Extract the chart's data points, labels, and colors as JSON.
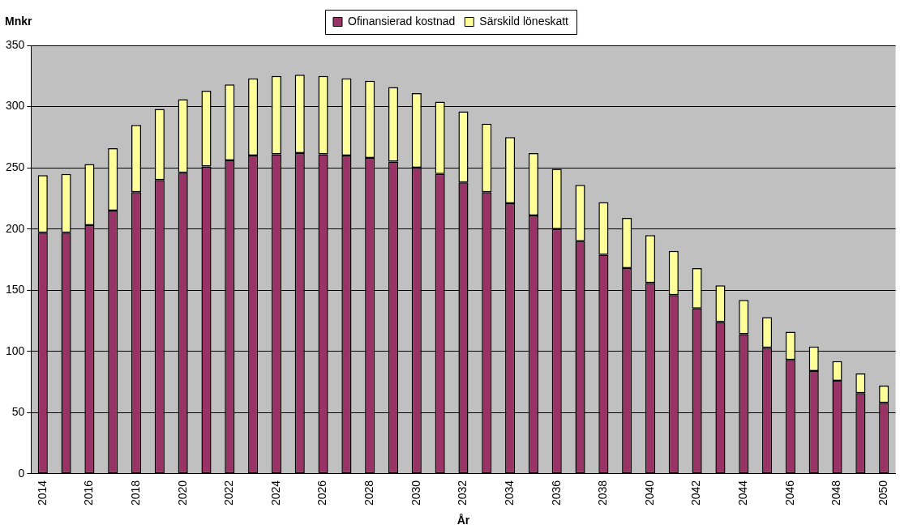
{
  "chart_data": {
    "type": "bar",
    "stacked": true,
    "ylabel": "Mnkr",
    "xlabel": "År",
    "categories": [
      "2014",
      null,
      "2016",
      null,
      "2018",
      null,
      "2020",
      null,
      "2022",
      null,
      "2024",
      null,
      "2026",
      null,
      "2028",
      null,
      "2030",
      null,
      "2032",
      null,
      "2034",
      null,
      "2036",
      null,
      "2038",
      null,
      "2040",
      null,
      "2042",
      null,
      "2044",
      null,
      "2046",
      null,
      "2048",
      null,
      "2050"
    ],
    "series": [
      {
        "name": "Ofinansierad kostnad",
        "color": "#993366",
        "values": [
          197,
          197,
          203,
          215,
          230,
          240,
          246,
          251,
          256,
          260,
          261,
          262,
          261,
          260,
          258,
          255,
          250,
          245,
          238,
          230,
          221,
          211,
          200,
          190,
          179,
          168,
          156,
          146,
          135,
          124,
          114,
          103,
          93,
          84,
          76,
          66,
          58
        ]
      },
      {
        "name": "Särskild löneskatt",
        "color": "#ffff99",
        "values": [
          47,
          48,
          50,
          51,
          55,
          58,
          60,
          62,
          62,
          63,
          64,
          64,
          64,
          63,
          63,
          61,
          61,
          59,
          58,
          56,
          54,
          51,
          49,
          46,
          43,
          41,
          39,
          36,
          33,
          30,
          28,
          25,
          23,
          20,
          16,
          16,
          14
        ]
      }
    ],
    "ylim": [
      0,
      350
    ],
    "yticks": [
      0,
      50,
      100,
      150,
      200,
      250,
      300,
      350
    ],
    "grid": "y",
    "legend": "top"
  }
}
